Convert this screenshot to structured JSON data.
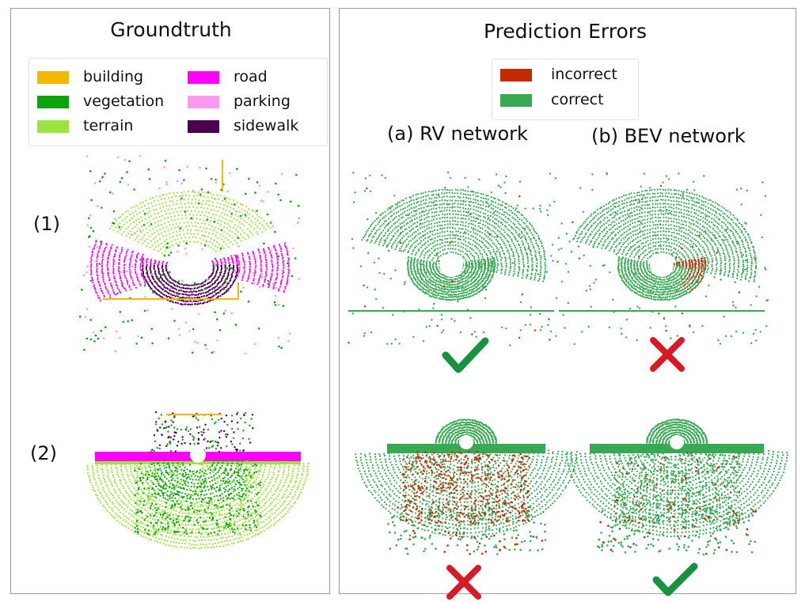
{
  "colors": {
    "building": "#F5B800",
    "vegetation": "#0DA30D",
    "terrain": "#9BE33F",
    "road": "#FF00FF",
    "parking": "#FF99EE",
    "sidewalk": "#4B0050",
    "incorrect": "#C42A00",
    "correct": "#38A854",
    "check": "#17923F",
    "cross": "#D81A26"
  },
  "groundtruth": {
    "title": "Groundtruth",
    "legend": [
      {
        "label": "building",
        "color": "#F5B800"
      },
      {
        "label": "vegetation",
        "color": "#0DA30D"
      },
      {
        "label": "terrain",
        "color": "#9BE33F"
      },
      {
        "label": "road",
        "color": "#FF00FF"
      },
      {
        "label": "parking",
        "color": "#FF99EE"
      },
      {
        "label": "sidewalk",
        "color": "#4B0050"
      }
    ],
    "rows": [
      {
        "label": "(1)"
      },
      {
        "label": "(2)"
      }
    ]
  },
  "prediction": {
    "title": "Prediction Errors",
    "legend": [
      {
        "label": "incorrect",
        "color": "#C42A00"
      },
      {
        "label": "correct",
        "color": "#38A854"
      }
    ],
    "columns": [
      {
        "title": "(a) RV network"
      },
      {
        "title": "(b) BEV network"
      }
    ],
    "results": [
      {
        "row": "(1)",
        "column": "(a) RV network",
        "mark": "check-icon"
      },
      {
        "row": "(1)",
        "column": "(b) BEV network",
        "mark": "cross-icon"
      },
      {
        "row": "(2)",
        "column": "(a) RV network",
        "mark": "cross-icon"
      },
      {
        "row": "(2)",
        "column": "(b) BEV network",
        "mark": "check-icon"
      }
    ]
  }
}
